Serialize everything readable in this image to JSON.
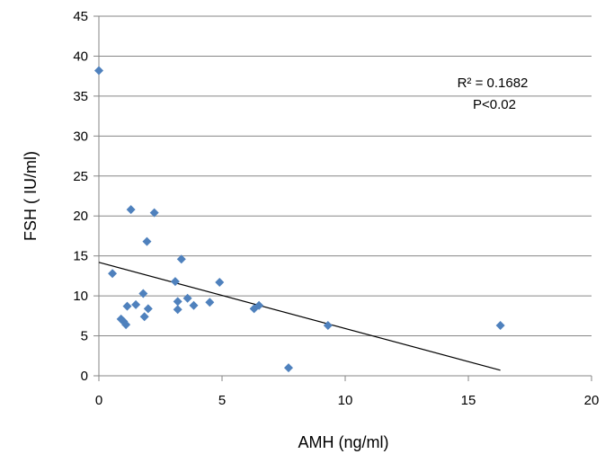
{
  "chart_data": {
    "type": "scatter",
    "title": "",
    "xlabel": "AMH (ng/ml)",
    "ylabel": "FSH ( IU/ml)",
    "xlim": [
      0,
      20
    ],
    "ylim": [
      0,
      45
    ],
    "x_ticks": [
      "0",
      "5",
      "10",
      "15",
      "20"
    ],
    "y_ticks": [
      "0",
      "5",
      "10",
      "15",
      "20",
      "25",
      "30",
      "35",
      "40",
      "45"
    ],
    "grid": {
      "horizontal": true,
      "vertical": false
    },
    "marker_color": "#4f81bd",
    "trendline_color": "#000000",
    "points": [
      {
        "x": 0.0,
        "y": 38.2
      },
      {
        "x": 0.55,
        "y": 12.8
      },
      {
        "x": 0.9,
        "y": 7.1
      },
      {
        "x": 1.0,
        "y": 6.8
      },
      {
        "x": 1.1,
        "y": 6.4
      },
      {
        "x": 1.15,
        "y": 8.7
      },
      {
        "x": 1.3,
        "y": 20.8
      },
      {
        "x": 1.5,
        "y": 8.9
      },
      {
        "x": 1.8,
        "y": 10.3
      },
      {
        "x": 1.85,
        "y": 7.4
      },
      {
        "x": 1.95,
        "y": 16.8
      },
      {
        "x": 2.0,
        "y": 8.4
      },
      {
        "x": 2.25,
        "y": 20.4
      },
      {
        "x": 3.1,
        "y": 11.8
      },
      {
        "x": 3.2,
        "y": 8.3
      },
      {
        "x": 3.2,
        "y": 9.3
      },
      {
        "x": 3.35,
        "y": 14.6
      },
      {
        "x": 3.6,
        "y": 9.7
      },
      {
        "x": 3.85,
        "y": 8.8
      },
      {
        "x": 4.5,
        "y": 9.2
      },
      {
        "x": 4.9,
        "y": 11.7
      },
      {
        "x": 6.3,
        "y": 8.4
      },
      {
        "x": 6.5,
        "y": 8.8
      },
      {
        "x": 7.7,
        "y": 1.0
      },
      {
        "x": 9.3,
        "y": 6.3
      },
      {
        "x": 16.3,
        "y": 6.3
      }
    ],
    "trendline": {
      "x": [
        0,
        16.3
      ],
      "y": [
        14.2,
        0.7
      ]
    },
    "annotations": [
      "R² = 0.1682",
      "P<0.02"
    ]
  }
}
